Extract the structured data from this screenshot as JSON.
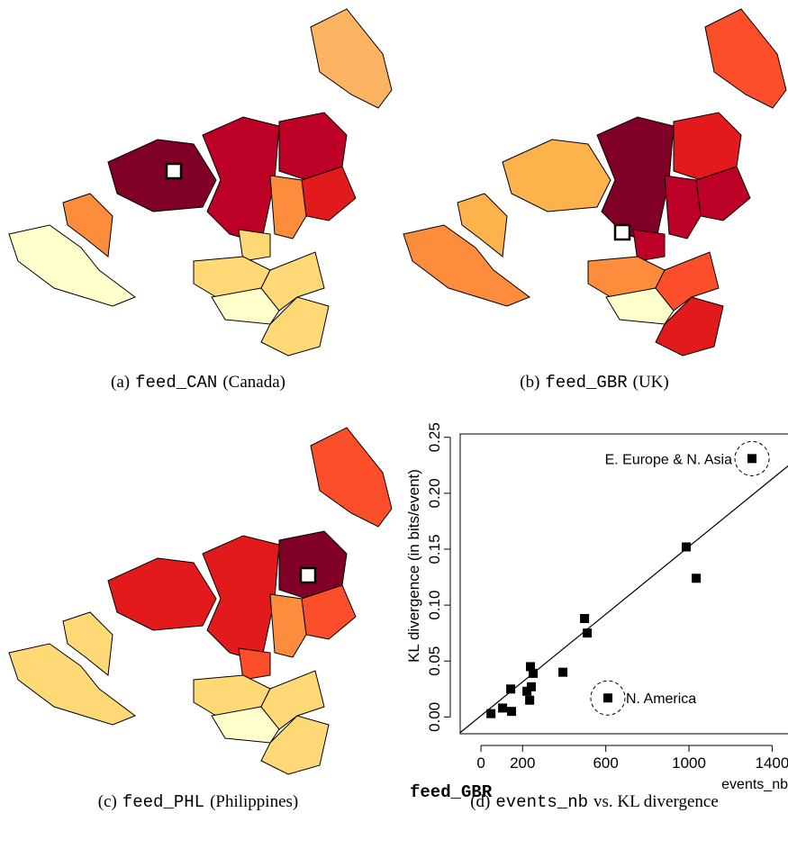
{
  "panels": [
    {
      "label": "(a)",
      "code": "feed_CAN",
      "name": "(Canada)"
    },
    {
      "label": "(b)",
      "code": "feed_GBR",
      "name": "(UK)"
    },
    {
      "label": "(c)",
      "code": "feed_PHL",
      "name": "(Philippines)"
    },
    {
      "label": "(d)",
      "code": "events_nb",
      "name": "vs. KL divergence"
    }
  ],
  "chart_data": {
    "type": "scatter",
    "feed_label": "feed_GBR",
    "x_label": "events_nb",
    "y_label": "KL divergence (in bits/event)",
    "color": "#000000",
    "x": [
      48,
      104,
      143,
      147,
      221,
      234,
      238,
      242,
      251,
      394,
      498,
      511,
      610,
      987,
      1035,
      1303
    ],
    "values": [
      0.003,
      0.008,
      0.025,
      0.005,
      0.023,
      0.015,
      0.045,
      0.027,
      0.039,
      0.04,
      0.088,
      0.075,
      0.017,
      0.152,
      0.124,
      0.231
    ],
    "trend_line": {
      "x": [
        -100,
        1500
      ],
      "y": [
        -0.014,
        0.228
      ]
    },
    "annotations": [
      {
        "text": "E. Europe & N. Asia",
        "point": 15
      },
      {
        "text": "N. America",
        "point": 12
      }
    ],
    "xlim": [
      -100,
      1500
    ],
    "ylim": [
      -0.015,
      0.253
    ],
    "xticks": [
      0,
      200,
      600,
      1000,
      1400
    ],
    "yticks": [
      {
        "value": 0,
        "label": "0.00"
      },
      {
        "value": 0.05,
        "label": "0.05"
      },
      {
        "value": 0.1,
        "label": "0.10"
      },
      {
        "value": 0.15,
        "label": "0.15"
      },
      {
        "value": 0.2,
        "label": "0.20"
      },
      {
        "value": 0.25,
        "label": "0.25"
      }
    ]
  }
}
